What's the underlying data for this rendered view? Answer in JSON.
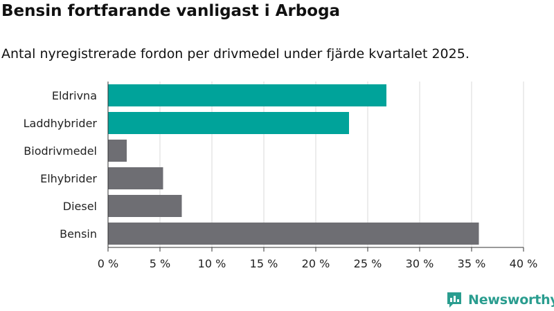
{
  "title": "Bensin fortfarande vanligast i Arboga",
  "subtitle": "Antal nyregistrerade fordon per drivmedel under fjärde kvartalet 2025.",
  "logo_text": "Newsworthy",
  "colors": {
    "highlight": "#00a39a",
    "default": "#6e6e73",
    "grid": "#d9d9d9",
    "axis": "#333333",
    "logo": "#2a9d8f"
  },
  "chart_data": {
    "type": "bar",
    "orientation": "horizontal",
    "categories": [
      "Eldrivna",
      "Laddhybrider",
      "Biodrivmedel",
      "Elhybrider",
      "Diesel",
      "Bensin"
    ],
    "values": [
      26.8,
      23.2,
      1.8,
      5.3,
      7.1,
      35.7
    ],
    "highlighted": [
      true,
      true,
      false,
      false,
      false,
      false
    ],
    "xlim": [
      0,
      40
    ],
    "xticks": [
      0,
      5,
      10,
      15,
      20,
      25,
      30,
      35,
      40
    ],
    "xtick_labels": [
      "0 %",
      "5 %",
      "10 %",
      "15 %",
      "20 %",
      "25 %",
      "30 %",
      "35 %",
      "40 %"
    ],
    "grid": true,
    "legend": "none"
  }
}
